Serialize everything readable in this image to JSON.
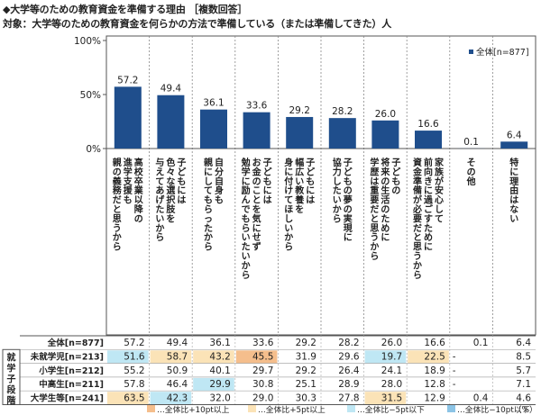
{
  "title": "◆大学等のための教育資金を準備する理由 ［複数回答］",
  "subtitle": "対象：大学等のための教育資金を何らかの方法で準備している（または準備してきた）人",
  "colors": {
    "bar": "#1f4e8c",
    "plus10": "#f5be8c",
    "plus5": "#fbe3b7",
    "minus5": "#bfe7f4",
    "minus10": "#8cc4e6"
  },
  "chart_data": {
    "type": "bar",
    "categories": [
      "高校卒業以降の進学支援も親の義務だと思うから",
      "子どもには色々な選択肢を与えてあげたいから",
      "自分自身も親にしてもらったから",
      "子どもにはお金のことを気にせず勉学に励んでもらいたいから",
      "子どもには幅広い教養を身に付けてほしいから",
      "子どもの夢の実現に協力したいから",
      "子どもの将来の生活のために学歴は重要だと思うから",
      "家族が安心して前向きに過ごすために資金準備が必要だと思うから",
      "その他",
      "特に理由はない"
    ],
    "category_display": [
      [
        "高校卒業以降の",
        "進学支援も",
        "親の義務だと思うから"
      ],
      [
        "子どもには",
        "色々な選択肢を",
        "与えてあげたいから"
      ],
      [
        "自分自身も",
        "親にしてもらったから"
      ],
      [
        "子どもには",
        "お金のことを気にせず",
        "勉学に励んでもらいたいから"
      ],
      [
        "子どもには",
        "幅広い教養を",
        "身に付けてほしいから"
      ],
      [
        "子どもの夢の実現に",
        "協力したいから"
      ],
      [
        "子どもの",
        "将来の生活のために",
        "学歴は重要だと思うから"
      ],
      [
        "家族が安心して",
        "前向きに過ごすために",
        "資金準備が必要だと思うから"
      ],
      [
        "その他"
      ],
      [
        "特に理由はない"
      ]
    ],
    "series": [
      {
        "name": "全体[n=877]",
        "values": [
          57.2,
          49.4,
          36.1,
          33.6,
          29.2,
          28.2,
          26.0,
          16.6,
          0.1,
          6.4
        ]
      }
    ],
    "y_ticks": [
      "100%",
      "50%",
      "0%"
    ],
    "ylim": [
      0,
      100
    ],
    "legend_label": "全体[n=877]",
    "legend_position": "top-right"
  },
  "table": {
    "group_label": [
      "就",
      "学",
      "子",
      "段",
      "階"
    ],
    "rows": [
      {
        "label": "全体[n=877]",
        "values": [
          "57.2",
          "49.4",
          "36.1",
          "33.6",
          "29.2",
          "28.2",
          "26.0",
          "16.6",
          "0.1",
          "6.4"
        ],
        "hl": [
          "",
          "",
          "",
          "",
          "",
          "",
          "",
          "",
          "",
          ""
        ]
      },
      {
        "label": "未就学児[n=213]",
        "values": [
          "51.6",
          "58.7",
          "43.2",
          "45.5",
          "31.9",
          "29.6",
          "19.7",
          "22.5",
          "-",
          "8.5"
        ],
        "hl": [
          "minus5",
          "plus5",
          "plus5",
          "plus10",
          "",
          "",
          "minus5",
          "plus5",
          "",
          ""
        ]
      },
      {
        "label": "小学生[n=212]",
        "values": [
          "55.2",
          "50.9",
          "40.1",
          "29.7",
          "29.2",
          "26.4",
          "24.1",
          "18.9",
          "-",
          "5.7"
        ],
        "hl": [
          "",
          "",
          "",
          "",
          "",
          "",
          "",
          "",
          "",
          ""
        ]
      },
      {
        "label": "中高生[n=211]",
        "values": [
          "57.8",
          "46.4",
          "29.9",
          "30.8",
          "25.1",
          "28.9",
          "28.0",
          "12.8",
          "-",
          "7.1"
        ],
        "hl": [
          "",
          "",
          "minus5",
          "",
          "",
          "",
          "",
          "",
          "",
          ""
        ]
      },
      {
        "label": "大学生等[n=241]",
        "values": [
          "63.5",
          "42.3",
          "32.0",
          "29.0",
          "30.3",
          "27.8",
          "31.5",
          "12.9",
          "0.4",
          "4.6"
        ],
        "hl": [
          "plus5",
          "minus5",
          "",
          "",
          "",
          "",
          "plus5",
          "",
          "",
          ""
        ]
      }
    ]
  },
  "legend_bottom": [
    {
      "key": "plus10",
      "label": "…全体比+10pt以上"
    },
    {
      "key": "plus5",
      "label": "…全体比+5pt以上"
    },
    {
      "key": "minus5",
      "label": "…全体比−5pt以下"
    },
    {
      "key": "minus10",
      "label": "…全体比−10pt以下"
    }
  ],
  "unit": "（%）"
}
